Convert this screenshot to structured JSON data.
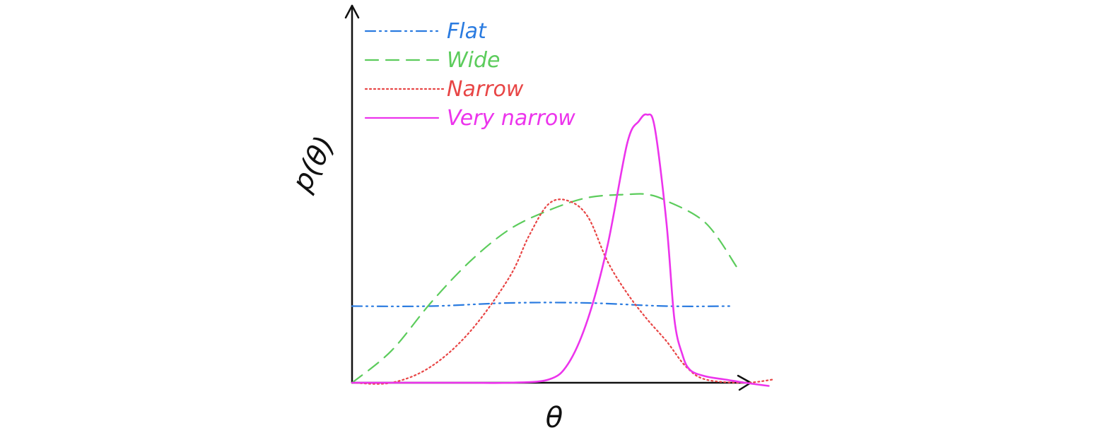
{
  "chart_data": {
    "type": "line",
    "xlabel": "θ",
    "ylabel": "p(θ)",
    "xlim": [
      0,
      1
    ],
    "ylim": [
      0,
      1
    ],
    "grid": false,
    "legend_position": "top-left",
    "series": [
      {
        "name": "Flat",
        "color": "#2a7be0",
        "style": "dash-dot",
        "x": [
          0.0,
          0.2,
          0.4,
          0.6,
          0.8,
          0.96
        ],
        "y": [
          0.24,
          0.24,
          0.25,
          0.25,
          0.24,
          0.24
        ]
      },
      {
        "name": "Wide",
        "color": "#5ccc5c",
        "style": "dashed",
        "x": [
          0.0,
          0.1,
          0.2,
          0.3,
          0.4,
          0.5,
          0.6,
          0.7,
          0.75,
          0.8,
          0.9,
          0.98
        ],
        "y": [
          0.0,
          0.1,
          0.25,
          0.38,
          0.48,
          0.54,
          0.58,
          0.59,
          0.59,
          0.57,
          0.5,
          0.36
        ]
      },
      {
        "name": "Narrow",
        "color": "#e84545",
        "style": "dotted",
        "x": [
          0.0,
          0.1,
          0.2,
          0.3,
          0.4,
          0.45,
          0.5,
          0.55,
          0.6,
          0.65,
          0.7,
          0.75,
          0.8,
          0.85,
          0.9,
          1.0,
          1.07
        ],
        "y": [
          0.0,
          0.0,
          0.05,
          0.16,
          0.33,
          0.46,
          0.56,
          0.57,
          0.52,
          0.38,
          0.28,
          0.2,
          0.13,
          0.05,
          0.01,
          0.0,
          0.01
        ]
      },
      {
        "name": "Very narrow",
        "color": "#ec34ec",
        "style": "solid",
        "x": [
          0.0,
          0.1,
          0.2,
          0.3,
          0.4,
          0.5,
          0.55,
          0.6,
          0.65,
          0.7,
          0.73,
          0.75,
          0.77,
          0.8,
          0.82,
          0.84,
          0.86,
          0.9,
          0.95,
          1.0,
          1.06
        ],
        "y": [
          0.0,
          0.0,
          0.0,
          0.0,
          0.0,
          0.01,
          0.06,
          0.2,
          0.43,
          0.75,
          0.82,
          0.84,
          0.8,
          0.5,
          0.2,
          0.09,
          0.04,
          0.02,
          0.01,
          0.0,
          -0.01
        ]
      }
    ]
  }
}
